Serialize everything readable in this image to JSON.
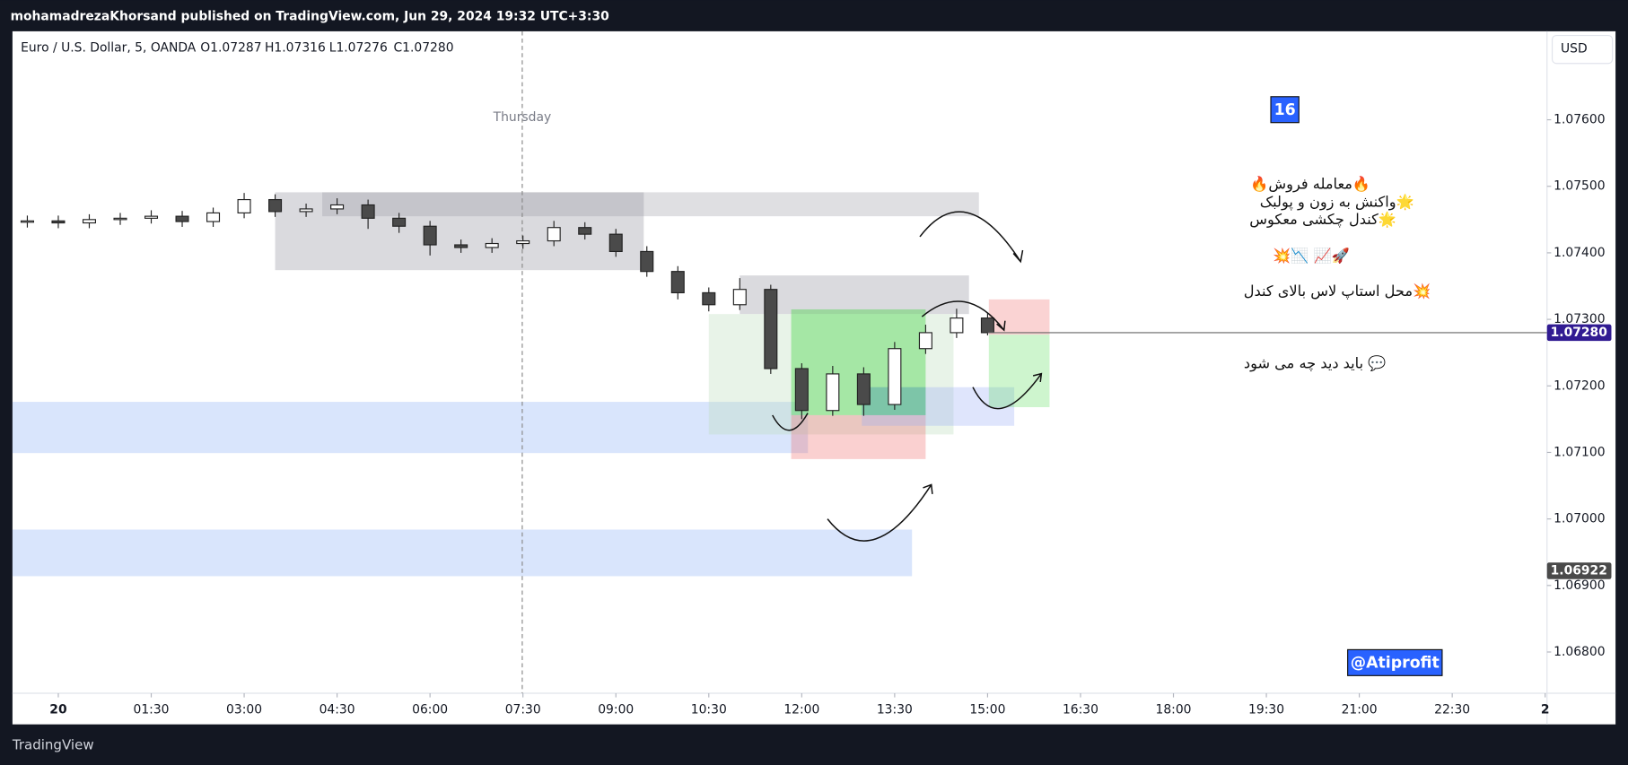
{
  "header": {
    "text": "mohamadrezaKhorsand published on TradingView.com, Jun 29, 2024 19:32 UTC+3:30"
  },
  "footer": {
    "brand": "TradingView"
  },
  "chart_data": {
    "type": "candlestick",
    "symbol": "Euro / U.S. Dollar, 5, OANDA",
    "ohlc_legend": [
      "O1.07287",
      "H1.07316",
      "L1.07276",
      "C1.07280"
    ],
    "currency": "USD",
    "session_label": "Thursday",
    "badge": "16",
    "watermark": "@Atiprofit",
    "annotations": [
      "🔥معامله فروش🔥",
      "🌟واکنش به زون و پولبک",
      "🌟کندل چکشی معکوس",
      "🚀📈 📉💥",
      "💥محل استاپ لاس بالای کندل",
      "💬 باید دید چه می شود"
    ],
    "up_color": "#ffffff",
    "down_color": "#4a4a4a",
    "x": [
      -0.5,
      0,
      0.5,
      1,
      1.5,
      2,
      2.5,
      3,
      3.5,
      4,
      4.5,
      5,
      5.5,
      6,
      6.5,
      7,
      7.5,
      8,
      8.5,
      9,
      9.5,
      10,
      10.5,
      11,
      11.5,
      12,
      12.5,
      13,
      13.5,
      14,
      14.5,
      15
    ],
    "open": [
      1.07446,
      1.07448,
      1.07445,
      1.0745,
      1.07452,
      1.07455,
      1.07447,
      1.0746,
      1.0748,
      1.07462,
      1.07466,
      1.07472,
      1.07452,
      1.0744,
      1.07412,
      1.07408,
      1.07414,
      1.07418,
      1.07438,
      1.07428,
      1.07402,
      1.07372,
      1.0734,
      1.07322,
      1.07345,
      1.07226,
      1.07163,
      1.07218,
      1.07172,
      1.07256,
      1.0728,
      1.07302
    ],
    "high": [
      1.07456,
      1.07456,
      1.07458,
      1.0746,
      1.07464,
      1.07463,
      1.07468,
      1.0749,
      1.07488,
      1.07474,
      1.07482,
      1.0748,
      1.0746,
      1.07448,
      1.0742,
      1.07422,
      1.07426,
      1.07448,
      1.07446,
      1.07436,
      1.0741,
      1.0738,
      1.07348,
      1.07362,
      1.07352,
      1.07234,
      1.0723,
      1.07228,
      1.07266,
      1.07292,
      1.07316,
      1.0731
    ],
    "low": [
      1.07438,
      1.07437,
      1.07437,
      1.07442,
      1.07444,
      1.07439,
      1.07439,
      1.07452,
      1.07454,
      1.07454,
      1.07458,
      1.07436,
      1.0743,
      1.07396,
      1.074,
      1.074,
      1.07406,
      1.0741,
      1.0742,
      1.07394,
      1.07364,
      1.0733,
      1.07312,
      1.07314,
      1.07218,
      1.0715,
      1.07155,
      1.07155,
      1.07164,
      1.07248,
      1.07272,
      1.07276
    ],
    "close": [
      1.07448,
      1.07445,
      1.0745,
      1.07452,
      1.07455,
      1.07447,
      1.0746,
      1.0748,
      1.07462,
      1.07466,
      1.07472,
      1.07452,
      1.0744,
      1.07412,
      1.07408,
      1.07414,
      1.07418,
      1.07438,
      1.07428,
      1.07402,
      1.07372,
      1.0734,
      1.07322,
      1.07345,
      1.07226,
      1.07163,
      1.07218,
      1.07172,
      1.07256,
      1.0728,
      1.07302,
      1.0728
    ],
    "zones": [
      {
        "x": [
          -0.74,
          12.1
        ],
        "y": [
          1.07176,
          1.07099
        ],
        "color": "rgba(120,160,245,0.28)"
      },
      {
        "x": [
          -0.74,
          13.78
        ],
        "y": [
          1.06984,
          1.06914
        ],
        "color": "rgba(120,160,245,0.28)"
      },
      {
        "x": [
          3.5,
          9.45
        ],
        "y": [
          1.07491,
          1.07374
        ],
        "color": "rgba(150,150,160,0.35)"
      },
      {
        "x": [
          4.26,
          14.86
        ],
        "y": [
          1.07491,
          1.07455
        ],
        "color": "rgba(150,150,160,0.3)"
      },
      {
        "x": [
          11,
          14.7
        ],
        "y": [
          1.07366,
          1.07308
        ],
        "color": "rgba(150,150,160,0.35)"
      },
      {
        "x": [
          10.5,
          14.45
        ],
        "y": [
          1.07308,
          1.07127
        ],
        "color": "rgba(190,220,190,0.35)"
      },
      {
        "x": [
          11.83,
          14.0
        ],
        "y": [
          1.07315,
          1.07156
        ],
        "color": "rgba(40,210,40,0.35)"
      },
      {
        "x": [
          11.83,
          14.0
        ],
        "y": [
          1.07156,
          1.0709
        ],
        "color": "rgba(240,100,100,0.3)"
      },
      {
        "x": [
          12.97,
          15.43
        ],
        "y": [
          1.07198,
          1.0714
        ],
        "color": "rgba(150,170,245,0.3)"
      },
      {
        "x": [
          12.97,
          14.0
        ],
        "y": [
          1.07198,
          1.07156
        ],
        "color": "rgba(60,170,130,0.35)"
      },
      {
        "x": [
          15.02,
          16.0
        ],
        "y": [
          1.0733,
          1.07277
        ],
        "color": "rgba(240,110,110,0.3)"
      },
      {
        "x": [
          15.02,
          16.0
        ],
        "y": [
          1.07277,
          1.07168
        ],
        "color": "rgba(80,220,80,0.28)"
      }
    ],
    "xlim": [
      -0.74,
      24.03
    ],
    "ylim": [
      1.06738,
      1.07733
    ],
    "xticks": [
      {
        "value": 0,
        "label": "20"
      },
      {
        "value": 1.5,
        "label": "01:30"
      },
      {
        "value": 3,
        "label": "03:00"
      },
      {
        "value": 4.5,
        "label": "04:30"
      },
      {
        "value": 6,
        "label": "06:00"
      },
      {
        "value": 7.5,
        "label": "07:30"
      },
      {
        "value": 9,
        "label": "09:00"
      },
      {
        "value": 10.5,
        "label": "10:30"
      },
      {
        "value": 12,
        "label": "12:00"
      },
      {
        "value": 13.5,
        "label": "13:30"
      },
      {
        "value": 15,
        "label": "15:00"
      },
      {
        "value": 16.5,
        "label": "16:30"
      },
      {
        "value": 18,
        "label": "18:00"
      },
      {
        "value": 19.5,
        "label": "19:30"
      },
      {
        "value": 21,
        "label": "21:00"
      },
      {
        "value": 22.5,
        "label": "22:30"
      },
      {
        "value": 24,
        "label": "2"
      }
    ],
    "yticks": [
      {
        "value": 1.068,
        "label": "1.06800"
      },
      {
        "value": 1.069,
        "label": "1.06900"
      },
      {
        "value": 1.07,
        "label": "1.07000"
      },
      {
        "value": 1.071,
        "label": "1.07100"
      },
      {
        "value": 1.072,
        "label": "1.07200"
      },
      {
        "value": 1.073,
        "label": "1.07300"
      },
      {
        "value": 1.074,
        "label": "1.07400"
      },
      {
        "value": 1.075,
        "label": "1.07500"
      },
      {
        "value": 1.076,
        "label": "1.07600"
      }
    ],
    "price_labels": [
      {
        "value": 1.0728,
        "label": "1.07280",
        "color": "#311b92"
      },
      {
        "value": 1.06922,
        "label": "1.06922",
        "color": "#4a4a4a"
      }
    ]
  }
}
